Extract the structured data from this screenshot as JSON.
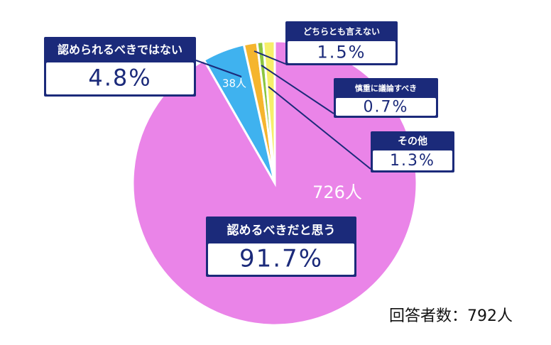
{
  "chart_data": {
    "type": "pie",
    "categories": [
      "認めるべきだと思う",
      "認められるべきではない",
      "どちらとも言えない",
      "慎重に議論すべき",
      "その他"
    ],
    "values": [
      91.7,
      4.8,
      1.5,
      0.7,
      1.3
    ],
    "value_labels": [
      "91.7%",
      "4.8%",
      "1.5%",
      "0.7%",
      "1.3%"
    ],
    "count_labels": [
      "726人",
      "38人",
      null,
      null,
      null
    ],
    "colors": [
      "#ea84e8",
      "#3fb2ef",
      "#f5b52e",
      "#8cc63f",
      "#f6ef6a"
    ],
    "note": "回答者数：792人"
  }
}
